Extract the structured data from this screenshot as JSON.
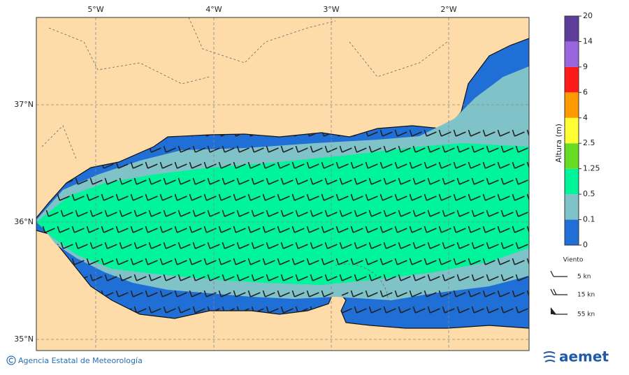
{
  "map": {
    "lon_labels": [
      "5°W",
      "4°W",
      "3°W",
      "2°W"
    ],
    "lat_labels": [
      "37°N",
      "36°N",
      "35°N"
    ]
  },
  "colorbar": {
    "title": "Altura (m)",
    "levels": [
      "0",
      "0.1",
      "0.5",
      "1.25",
      "2.5",
      "4",
      "6",
      "9",
      "14",
      "20"
    ],
    "colors": [
      "#1f6fd6",
      "#7fc2c8",
      "#00f59a",
      "#66dd22",
      "#ffff33",
      "#ff9900",
      "#ff1a1a",
      "#9966dd",
      "#5c3d99"
    ]
  },
  "legend": {
    "title": "Viento",
    "items": [
      "5 kn",
      "15 kn",
      "55 kn"
    ]
  },
  "footer": {
    "credit": "Agencia Estatal de Meteorología",
    "logo": "aemet"
  }
}
